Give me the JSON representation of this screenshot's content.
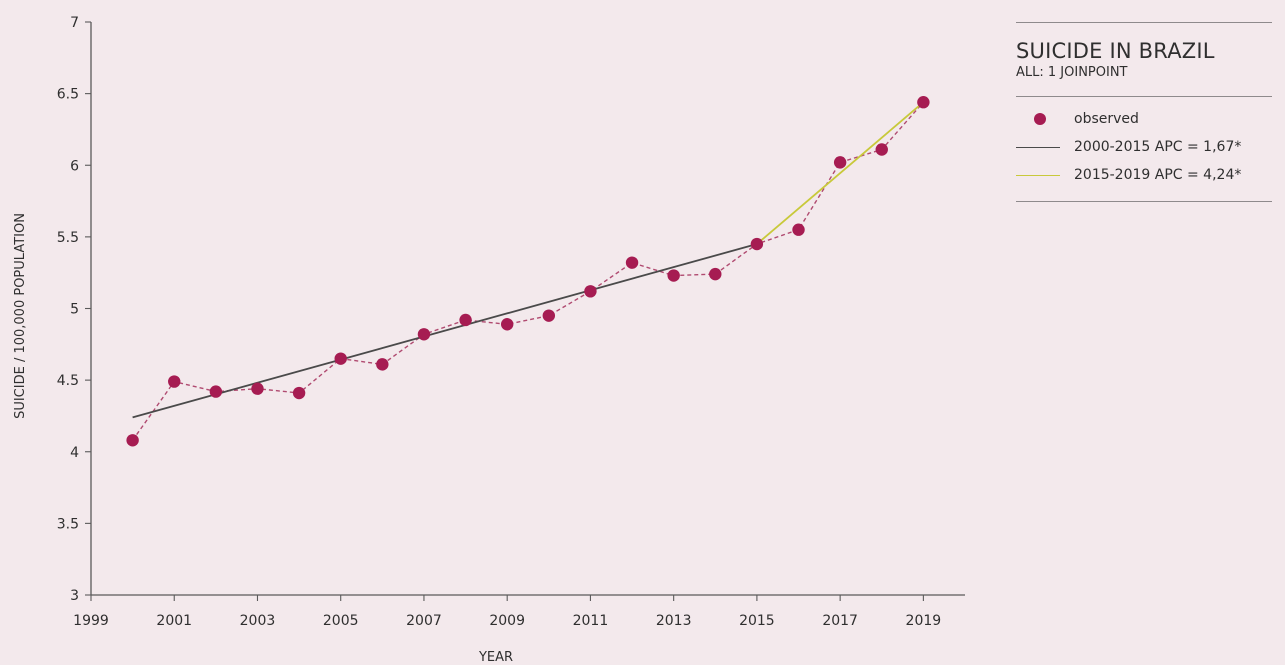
{
  "chart_data": {
    "type": "line",
    "title": "SUICIDE IN BRAZIL",
    "subtitle": "ALL: 1 JOINPOINT",
    "xlabel": "YEAR",
    "ylabel": "SUICIDE / 100,000 POPULATION",
    "xlim": [
      1999,
      2020
    ],
    "ylim": [
      3,
      7
    ],
    "x_ticks": [
      "1999",
      "2001",
      "2003",
      "2005",
      "2007",
      "2009",
      "2011",
      "2013",
      "2015",
      "2017",
      "2019"
    ],
    "y_ticks": [
      "3",
      "3.5",
      "4",
      "4.5",
      "5",
      "5.5",
      "6",
      "6.5",
      "7"
    ],
    "grid": false,
    "legend_position": "top-right",
    "series": [
      {
        "name": "observed",
        "style": "points-dashed",
        "color": "#a61c52",
        "x": [
          2000,
          2001,
          2002,
          2003,
          2004,
          2005,
          2006,
          2007,
          2008,
          2009,
          2010,
          2011,
          2012,
          2013,
          2014,
          2015,
          2016,
          2017,
          2018,
          2019
        ],
        "y": [
          4.08,
          4.49,
          4.42,
          4.44,
          4.41,
          4.65,
          4.61,
          4.82,
          4.92,
          4.89,
          4.95,
          5.12,
          5.32,
          5.23,
          5.24,
          5.45,
          5.55,
          6.02,
          6.11,
          6.44
        ]
      },
      {
        "name": "2000-2015 APC = 1,67*",
        "style": "line",
        "color": "#4a4a4a",
        "x": [
          2000,
          2015
        ],
        "y": [
          4.24,
          5.45
        ]
      },
      {
        "name": "2015-2019 APC = 4,24*",
        "style": "line",
        "color": "#c8c93a",
        "x": [
          2015,
          2019
        ],
        "y": [
          5.45,
          6.44
        ]
      }
    ]
  }
}
